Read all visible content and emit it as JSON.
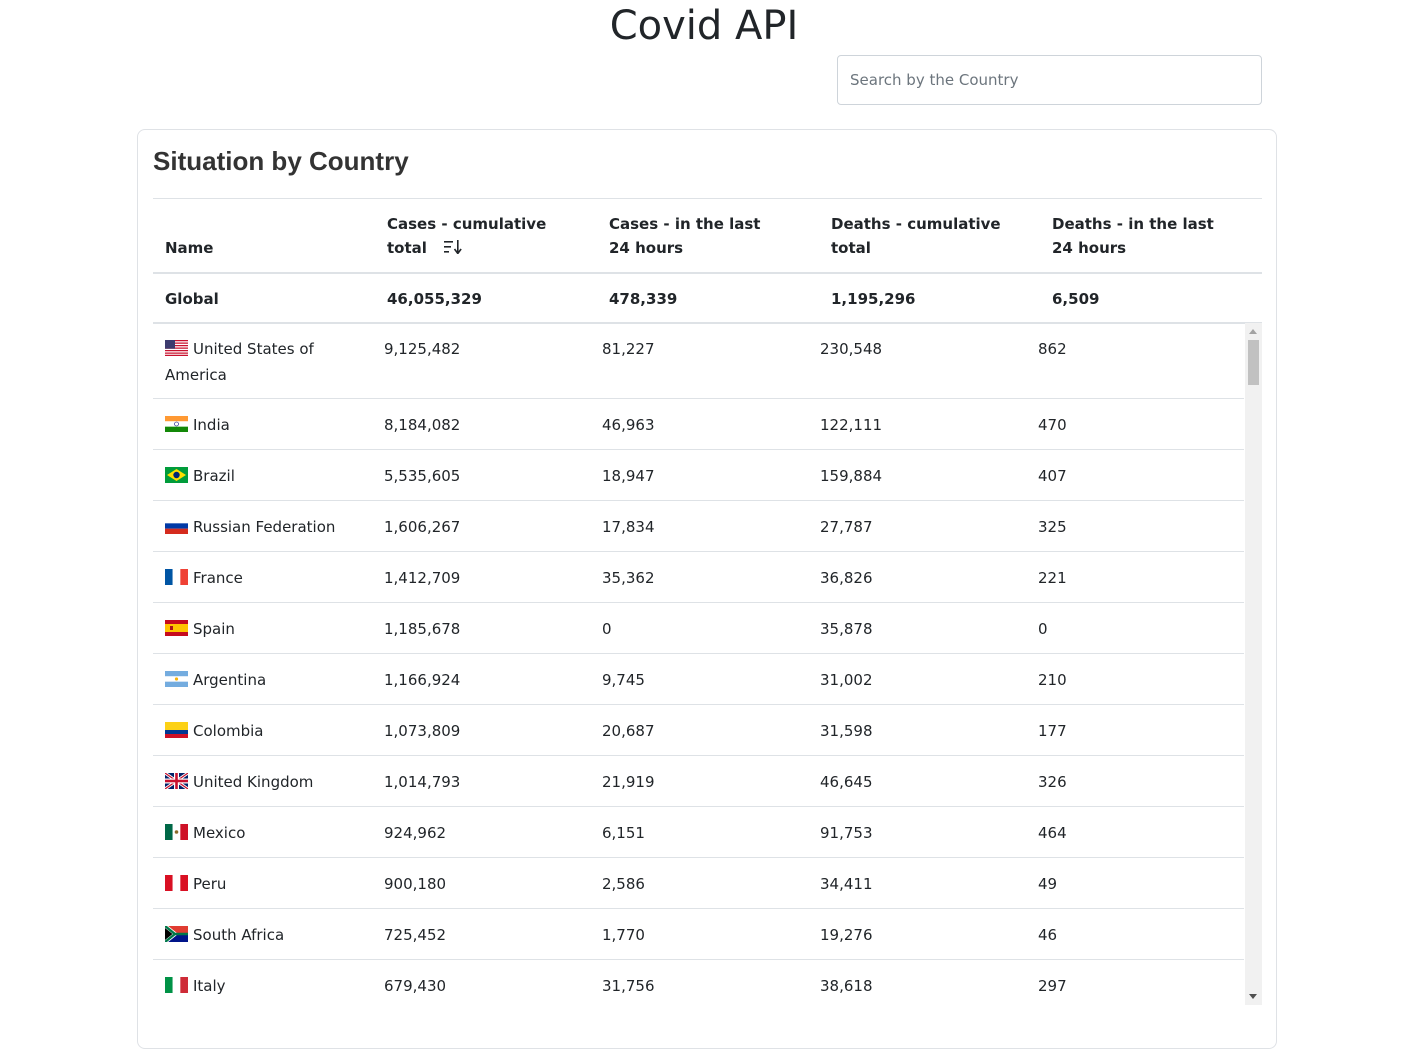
{
  "page": {
    "title": "Covid API"
  },
  "search": {
    "placeholder": "Search by the Country"
  },
  "card": {
    "title": "Situation by Country"
  },
  "table": {
    "headers": {
      "name": "Name",
      "cases_total": "Cases - cumulative total",
      "cases_24h": "Cases - in the last 24 hours",
      "deaths_total": "Deaths - cumulative total",
      "deaths_24h": "Deaths - in the last 24 hours"
    },
    "sort_icon": "sort-descending-icon",
    "global": {
      "name": "Global",
      "cases_total": "46,055,329",
      "cases_24h": "478,339",
      "deaths_total": "1,195,296",
      "deaths_24h": "6,509"
    },
    "rows": [
      {
        "flag": "usa",
        "name": "United States of America",
        "cases_total": "9,125,482",
        "cases_24h": "81,227",
        "deaths_total": "230,548",
        "deaths_24h": "862"
      },
      {
        "flag": "india",
        "name": "India",
        "cases_total": "8,184,082",
        "cases_24h": "46,963",
        "deaths_total": "122,111",
        "deaths_24h": "470"
      },
      {
        "flag": "brazil",
        "name": "Brazil",
        "cases_total": "5,535,605",
        "cases_24h": "18,947",
        "deaths_total": "159,884",
        "deaths_24h": "407"
      },
      {
        "flag": "russia",
        "name": "Russian Federation",
        "cases_total": "1,606,267",
        "cases_24h": "17,834",
        "deaths_total": "27,787",
        "deaths_24h": "325"
      },
      {
        "flag": "france",
        "name": "France",
        "cases_total": "1,412,709",
        "cases_24h": "35,362",
        "deaths_total": "36,826",
        "deaths_24h": "221"
      },
      {
        "flag": "spain",
        "name": "Spain",
        "cases_total": "1,185,678",
        "cases_24h": "0",
        "deaths_total": "35,878",
        "deaths_24h": "0"
      },
      {
        "flag": "argentina",
        "name": "Argentina",
        "cases_total": "1,166,924",
        "cases_24h": "9,745",
        "deaths_total": "31,002",
        "deaths_24h": "210"
      },
      {
        "flag": "colombia",
        "name": "Colombia",
        "cases_total": "1,073,809",
        "cases_24h": "20,687",
        "deaths_total": "31,598",
        "deaths_24h": "177"
      },
      {
        "flag": "uk",
        "name": "United Kingdom",
        "cases_total": "1,014,793",
        "cases_24h": "21,919",
        "deaths_total": "46,645",
        "deaths_24h": "326"
      },
      {
        "flag": "mexico",
        "name": "Mexico",
        "cases_total": "924,962",
        "cases_24h": "6,151",
        "deaths_total": "91,753",
        "deaths_24h": "464"
      },
      {
        "flag": "peru",
        "name": "Peru",
        "cases_total": "900,180",
        "cases_24h": "2,586",
        "deaths_total": "34,411",
        "deaths_24h": "49"
      },
      {
        "flag": "south-africa",
        "name": "South Africa",
        "cases_total": "725,452",
        "cases_24h": "1,770",
        "deaths_total": "19,276",
        "deaths_24h": "46"
      },
      {
        "flag": "italy",
        "name": "Italy",
        "cases_total": "679,430",
        "cases_24h": "31,756",
        "deaths_total": "38,618",
        "deaths_24h": "297"
      }
    ]
  }
}
